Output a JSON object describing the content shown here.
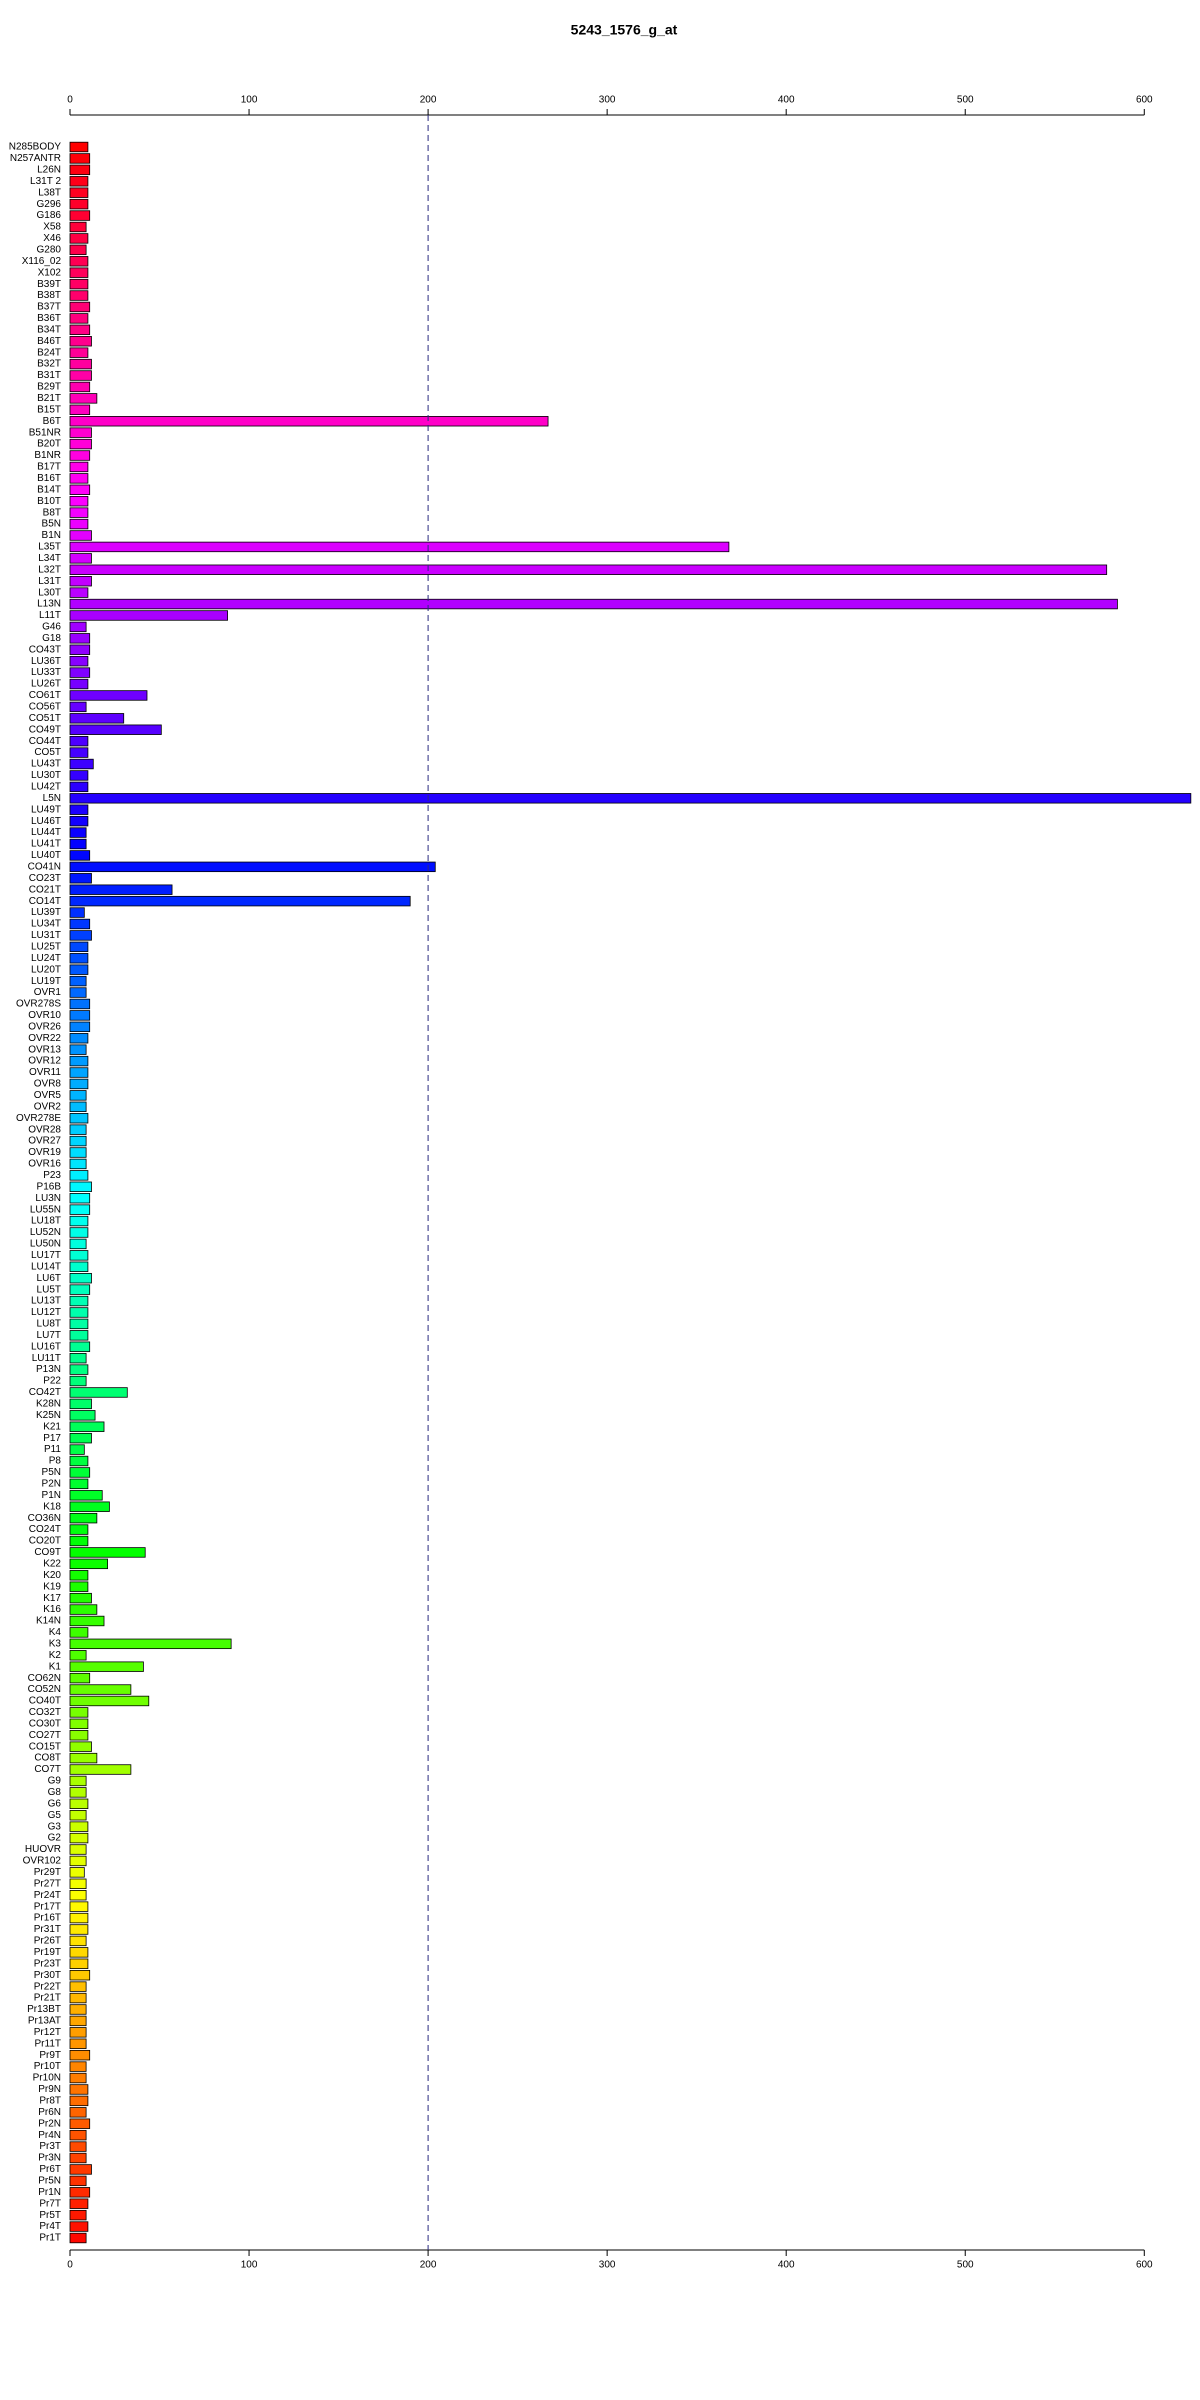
{
  "chart_data": {
    "type": "bar",
    "orientation": "horizontal",
    "title": "5243_1576_g_at",
    "categories": [
      "N285BODY",
      "N257ANTR",
      "L26N",
      "L31T 2",
      "L38T",
      "G296",
      "G186",
      "X58",
      "X46",
      "G280",
      "X116_02",
      "X102",
      "B39T",
      "B38T",
      "B37T",
      "B36T",
      "B34T",
      "B46T",
      "B24T",
      "B32T",
      "B31T",
      "B29T",
      "B21T",
      "B15T",
      "B6T",
      "B51NR",
      "B20T",
      "B1NR",
      "B17T",
      "B16T",
      "B14T",
      "B10T",
      "B8T",
      "B5N",
      "B1N",
      "L35T",
      "L34T",
      "L32T",
      "L31T",
      "L30T",
      "L13N",
      "L11T",
      "G46",
      "G18",
      "CO43T",
      "LU36T",
      "LU33T",
      "LU26T",
      "CO61T",
      "CO56T",
      "CO51T",
      "CO49T",
      "CO44T",
      "CO5T",
      "LU43T",
      "LU30T",
      "LU42T",
      "L5N",
      "LU49T",
      "LU46T",
      "LU44T",
      "LU41T",
      "LU40T",
      "CO41N",
      "CO23T",
      "CO21T",
      "CO14T",
      "LU39T",
      "LU34T",
      "LU31T",
      "LU25T",
      "LU24T",
      "LU20T",
      "LU19T",
      "OVR1",
      "OVR278S",
      "OVR10",
      "OVR26",
      "OVR22",
      "OVR13",
      "OVR12",
      "OVR11",
      "OVR8",
      "OVR5",
      "OVR2",
      "OVR278E",
      "OVR28",
      "OVR27",
      "OVR19",
      "OVR16",
      "P23",
      "P16B",
      "LU3N",
      "LU55N",
      "LU18T",
      "LU52N",
      "LU50N",
      "LU17T",
      "LU14T",
      "LU6T",
      "LU5T",
      "LU13T",
      "LU12T",
      "LU8T",
      "LU7T",
      "LU16T",
      "LU11T",
      "P13N",
      "P22",
      "CO42T",
      "K28N",
      "K25N",
      "K21",
      "P17",
      "P11",
      "P8",
      "P5N",
      "P2N",
      "P1N",
      "K18",
      "CO36N",
      "CO24T",
      "CO20T",
      "CO9T",
      "K22",
      "K20",
      "K19",
      "K17",
      "K16",
      "K14N",
      "K4",
      "K3",
      "K2",
      "K1",
      "CO62N",
      "CO52N",
      "CO40T",
      "CO32T",
      "CO30T",
      "CO27T",
      "CO15T",
      "CO8T",
      "CO7T",
      "G9",
      "G8",
      "G6",
      "G5",
      "G3",
      "G2",
      "HUOVR",
      "OVR102",
      "Pr29T",
      "Pr27T",
      "Pr24T",
      "Pr17T",
      "Pr16T",
      "Pr31T",
      "Pr26T",
      "Pr19T",
      "Pr23T",
      "Pr30T",
      "Pr22T",
      "Pr21T",
      "Pr13BT",
      "Pr13AT",
      "Pr12T",
      "Pr11T",
      "Pr9T",
      "Pr10T",
      "Pr10N",
      "Pr9N",
      "Pr8T",
      "Pr6N",
      "Pr2N",
      "Pr4N",
      "Pr3T",
      "Pr3N",
      "Pr6T",
      "Pr5N",
      "Pr1N",
      "Pr7T",
      "Pr5T",
      "Pr4T",
      "Pr1T"
    ],
    "values": [
      10,
      11,
      11,
      10,
      10,
      10,
      11,
      9,
      10,
      9,
      10,
      10,
      10,
      10,
      11,
      10,
      11,
      12,
      10,
      12,
      12,
      11,
      15,
      11,
      267,
      12,
      12,
      11,
      10,
      10,
      11,
      10,
      10,
      10,
      12,
      368,
      12,
      579,
      12,
      10,
      585,
      88,
      9,
      11,
      11,
      10,
      11,
      10,
      43,
      9,
      30,
      51,
      10,
      10,
      13,
      10,
      10,
      626,
      10,
      10,
      9,
      9,
      11,
      204,
      12,
      57,
      190,
      8,
      11,
      12,
      10,
      10,
      10,
      9,
      9,
      11,
      11,
      11,
      10,
      9,
      10,
      10,
      10,
      9,
      9,
      10,
      9,
      9,
      9,
      9,
      10,
      12,
      11,
      11,
      10,
      10,
      9,
      10,
      10,
      12,
      11,
      10,
      10,
      10,
      10,
      11,
      9,
      10,
      9,
      32,
      12,
      14,
      19,
      12,
      8,
      10,
      11,
      10,
      18,
      22,
      15,
      10,
      10,
      42,
      21,
      10,
      10,
      12,
      15,
      19,
      10,
      90,
      9,
      41,
      11,
      34,
      44,
      10,
      10,
      10,
      12,
      15,
      34,
      9,
      9,
      10,
      9,
      10,
      10,
      9,
      9,
      8,
      9,
      9,
      10,
      10,
      10,
      9,
      10,
      10,
      11,
      9,
      9,
      9,
      9,
      9,
      9,
      11,
      9,
      9,
      10,
      10,
      9,
      11,
      9,
      9,
      9,
      12,
      9,
      11,
      10,
      9,
      10,
      9
    ],
    "color_scheme": "rainbow",
    "xlim": [
      0,
      630
    ],
    "xticks": [
      0,
      100,
      200,
      300,
      400,
      500,
      600
    ],
    "vline": 200
  }
}
